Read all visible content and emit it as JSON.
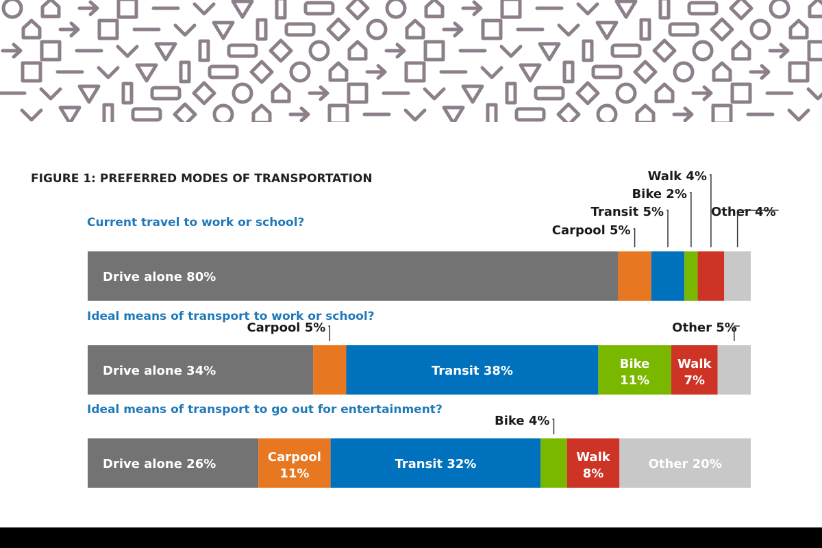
{
  "banner": {
    "pattern_color": "#8c7f8a"
  },
  "colors": {
    "Drive alone": "#737373",
    "Carpool": "#e87722",
    "Transit": "#0071bc",
    "Bike": "#7ab800",
    "Walk": "#cd3426",
    "Other": "#c8c8c8",
    "question": "#1f78b8"
  },
  "chart_data": {
    "type": "bar",
    "orientation": "horizontal",
    "stacked": true,
    "normalized": true,
    "title": "FIGURE 1: PREFERRED MODES OF TRANSPORTATION",
    "categories": [
      "Current travel to work or school?",
      "Ideal means of transport to work or school?",
      "Ideal means of transport to go out for entertainment?"
    ],
    "series": [
      {
        "name": "Drive alone",
        "values": [
          80,
          34,
          26
        ]
      },
      {
        "name": "Carpool",
        "values": [
          5,
          5,
          11
        ]
      },
      {
        "name": "Transit",
        "values": [
          5,
          38,
          32
        ]
      },
      {
        "name": "Bike",
        "values": [
          2,
          11,
          4
        ]
      },
      {
        "name": "Walk",
        "values": [
          4,
          7,
          8
        ]
      },
      {
        "name": "Other",
        "values": [
          4,
          5,
          20
        ]
      }
    ],
    "labels": [
      [
        "Drive alone 80%",
        "Carpool 5%",
        "Transit 5%",
        "Bike 2%",
        "Walk 4%",
        "Other 4%"
      ],
      [
        "Drive alone 34%",
        "Carpool 5%",
        "Transit 38%",
        "Bike 11%",
        "Walk 7%",
        "Other 5%"
      ],
      [
        "Drive alone 26%",
        "Carpool 11%",
        "Transit 32%",
        "Bike 4%",
        "Walk 8%",
        "Other 20%"
      ]
    ]
  }
}
